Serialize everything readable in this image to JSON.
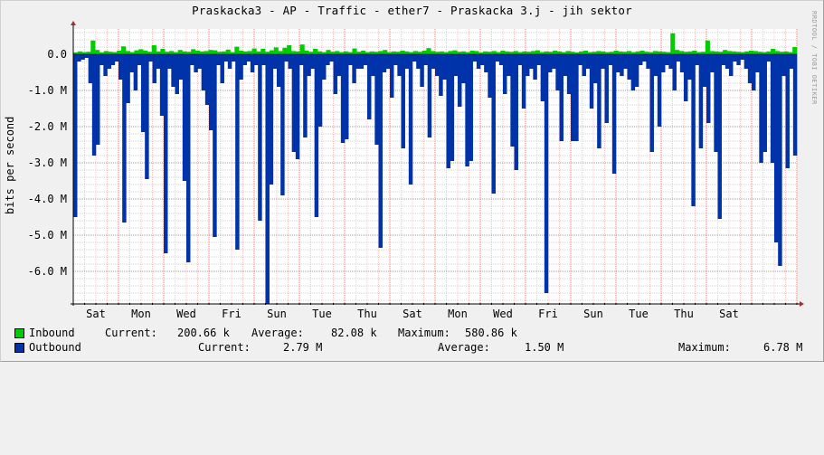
{
  "title": "Praskacka3 - AP - Traffic - ether7 - Praskacka 3.j - jih sektor",
  "watermark": "RRDTOOL / TOBI OETIKER",
  "chart_data": {
    "type": "area",
    "ylabel": "bits per second",
    "ylim": [
      -6.9,
      0.7
    ],
    "y_ticks": [
      {
        "value": 0,
        "label": "0.0"
      },
      {
        "value": -1,
        "label": "-1.0 M"
      },
      {
        "value": -2,
        "label": "-2.0 M"
      },
      {
        "value": -3,
        "label": "-3.0 M"
      },
      {
        "value": -4,
        "label": "-4.0 M"
      },
      {
        "value": -5,
        "label": "-5.0 M"
      },
      {
        "value": -6,
        "label": "-6.0 M"
      }
    ],
    "y_unit": "M (Mbit/s)",
    "x_range_days": [
      0,
      16
    ],
    "x_ticks": [
      {
        "day": 0.5,
        "label": "Sat"
      },
      {
        "day": 1.5,
        "label": "Mon"
      },
      {
        "day": 2.5,
        "label": "Wed"
      },
      {
        "day": 3.5,
        "label": "Fri"
      },
      {
        "day": 4.5,
        "label": "Sun"
      },
      {
        "day": 5.5,
        "label": "Tue"
      },
      {
        "day": 6.5,
        "label": "Thu"
      },
      {
        "day": 7.5,
        "label": "Sat"
      },
      {
        "day": 8.5,
        "label": "Mon"
      },
      {
        "day": 9.5,
        "label": "Wed"
      },
      {
        "day": 10.5,
        "label": "Fri"
      },
      {
        "day": 11.5,
        "label": "Sun"
      },
      {
        "day": 12.5,
        "label": "Tue"
      },
      {
        "day": 13.5,
        "label": "Thu"
      },
      {
        "day": 14.5,
        "label": "Sat"
      }
    ],
    "grid": true,
    "series": [
      {
        "name": "Inbound",
        "color": "#00cc00",
        "values": [
          0.05,
          0.08,
          0.06,
          0.07,
          0.38,
          0.12,
          0.05,
          0.09,
          0.07,
          0.06,
          0.1,
          0.22,
          0.09,
          0.06,
          0.11,
          0.14,
          0.1,
          0.07,
          0.25,
          0.08,
          0.15,
          0.07,
          0.09,
          0.06,
          0.12,
          0.08,
          0.07,
          0.14,
          0.1,
          0.08,
          0.09,
          0.12,
          0.11,
          0.07,
          0.08,
          0.13,
          0.06,
          0.21,
          0.1,
          0.08,
          0.09,
          0.16,
          0.08,
          0.15,
          0.07,
          0.11,
          0.19,
          0.09,
          0.18,
          0.25,
          0.09,
          0.08,
          0.27,
          0.1,
          0.07,
          0.15,
          0.08,
          0.06,
          0.12,
          0.07,
          0.09,
          0.06,
          0.08,
          0.06,
          0.16,
          0.07,
          0.1,
          0.06,
          0.08,
          0.07,
          0.09,
          0.12,
          0.06,
          0.08,
          0.07,
          0.1,
          0.08,
          0.06,
          0.09,
          0.07,
          0.1,
          0.17,
          0.09,
          0.07,
          0.08,
          0.06,
          0.09,
          0.11,
          0.07,
          0.08,
          0.06,
          0.1,
          0.09,
          0.05,
          0.08,
          0.07,
          0.09,
          0.06,
          0.1,
          0.08,
          0.07,
          0.09,
          0.06,
          0.08,
          0.07,
          0.09,
          0.11,
          0.06,
          0.08,
          0.07,
          0.1,
          0.08,
          0.06,
          0.09,
          0.07,
          0.05,
          0.08,
          0.1,
          0.06,
          0.07,
          0.09,
          0.08,
          0.06,
          0.07,
          0.1,
          0.08,
          0.07,
          0.09,
          0.06,
          0.08,
          0.1,
          0.07,
          0.06,
          0.09,
          0.08,
          0.07,
          0.06,
          0.58,
          0.12,
          0.09,
          0.07,
          0.08,
          0.1,
          0.06,
          0.07,
          0.38,
          0.09,
          0.08,
          0.07,
          0.12,
          0.09,
          0.08,
          0.07,
          0.06,
          0.08,
          0.1,
          0.09,
          0.07,
          0.06,
          0.08,
          0.15,
          0.09,
          0.07,
          0.08,
          0.06,
          0.2
        ]
      },
      {
        "name": "Outbound",
        "color": "#0033aa",
        "values": [
          -4.5,
          -0.2,
          -0.15,
          -0.1,
          -0.8,
          -2.8,
          -2.5,
          -0.3,
          -0.6,
          -0.4,
          -0.3,
          -0.2,
          -0.7,
          -4.65,
          -1.35,
          -0.5,
          -1.0,
          -0.3,
          -2.15,
          -3.45,
          -0.2,
          -0.8,
          -0.4,
          -1.7,
          -5.5,
          -0.4,
          -0.9,
          -1.1,
          -0.7,
          -3.5,
          -5.75,
          -0.3,
          -0.5,
          -0.4,
          -1.0,
          -1.4,
          -2.1,
          -5.05,
          -0.3,
          -0.8,
          -0.2,
          -0.4,
          -0.2,
          -5.4,
          -0.7,
          -0.3,
          -0.2,
          -0.5,
          -0.3,
          -4.6,
          -0.3,
          -6.9,
          -3.6,
          -0.4,
          -0.9,
          -3.9,
          -0.2,
          -0.4,
          -2.7,
          -2.9,
          -0.3,
          -2.3,
          -0.6,
          -0.4,
          -4.5,
          -2.0,
          -0.7,
          -0.3,
          -0.2,
          -1.1,
          -0.6,
          -2.45,
          -2.35,
          -0.3,
          -0.8,
          -0.4,
          -0.4,
          -0.3,
          -1.8,
          -0.6,
          -2.5,
          -5.35,
          -0.5,
          -0.4,
          -1.2,
          -0.3,
          -0.6,
          -2.6,
          -0.4,
          -3.6,
          -0.2,
          -0.4,
          -0.9,
          -0.3,
          -2.3,
          -0.4,
          -0.6,
          -1.15,
          -0.7,
          -3.15,
          -2.95,
          -0.6,
          -1.45,
          -0.8,
          -3.1,
          -2.95,
          -0.2,
          -0.4,
          -0.3,
          -0.5,
          -1.2,
          -3.85,
          -0.2,
          -0.3,
          -1.1,
          -0.6,
          -2.55,
          -3.2,
          -0.3,
          -1.5,
          -0.6,
          -0.4,
          -0.7,
          -0.3,
          -1.3,
          -6.6,
          -0.5,
          -0.4,
          -1.0,
          -2.4,
          -0.6,
          -1.1,
          -2.4,
          -2.4,
          -0.3,
          -0.6,
          -0.4,
          -1.5,
          -0.8,
          -2.6,
          -0.4,
          -1.9,
          -0.3,
          -3.3,
          -0.5,
          -0.6,
          -0.4,
          -0.7,
          -1.0,
          -0.9,
          -0.3,
          -0.2,
          -0.4,
          -2.7,
          -0.6,
          -2.0,
          -0.5,
          -0.3,
          -0.4,
          -1.0,
          -0.2,
          -0.5,
          -1.3,
          -0.7,
          -4.2,
          -0.3,
          -2.6,
          -0.9,
          -1.9,
          -0.5,
          -2.7,
          -4.55,
          -0.3,
          -0.4,
          -0.6,
          -0.2,
          -0.3,
          -0.15,
          -0.4,
          -0.8,
          -1.0,
          -0.5,
          -3.0,
          -2.7,
          -0.2,
          -3.0,
          -5.2,
          -5.85,
          -0.6,
          -3.15,
          -0.4,
          -2.8
        ]
      }
    ]
  },
  "legend": {
    "inbound": {
      "label": "Inbound",
      "current_label": "Current:",
      "current_value": "200.66 k",
      "average_label": "Average:",
      "average_value": "82.08 k",
      "maximum_label": "Maximum:",
      "maximum_value": "580.86 k"
    },
    "outbound": {
      "label": "Outbound",
      "current_label": "Current:",
      "current_value": "2.79 M",
      "average_label": "Average:",
      "average_value": "1.50 M",
      "maximum_label": "Maximum:",
      "maximum_value": "6.78 M"
    }
  }
}
